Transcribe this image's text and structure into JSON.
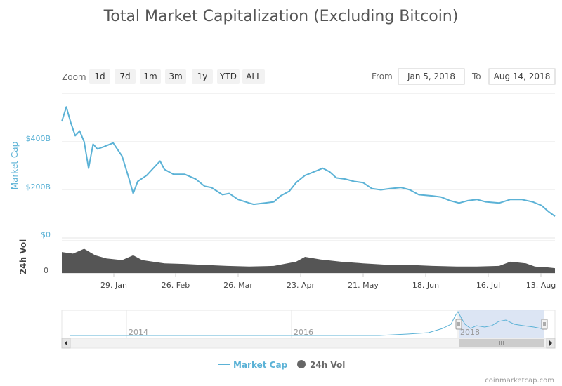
{
  "title": "Total Market Capitalization (Excluding Bitcoin)",
  "zoom": {
    "label": "Zoom",
    "buttons": [
      "1d",
      "7d",
      "1m",
      "3m",
      "1y",
      "YTD",
      "ALL"
    ]
  },
  "range": {
    "from_label": "From",
    "from_value": "Jan 5, 2018",
    "to_label": "To",
    "to_value": "Aug 14, 2018"
  },
  "legend": {
    "market_cap": "Market Cap",
    "volume": "24h Vol"
  },
  "credit": "coinmarketcap.com",
  "colors": {
    "market_cap": "#5bb2d6",
    "volume": "#555555",
    "navigator_selection": "#d8e2f3"
  },
  "chart_data": {
    "type": "line",
    "title": "Total Market Capitalization (Excluding Bitcoin)",
    "x_ticks": [
      "29. Jan",
      "26. Feb",
      "26. Mar",
      "23. Apr",
      "21. May",
      "18. Jun",
      "16. Jul",
      "13. Aug"
    ],
    "navigator_ticks": [
      "2014",
      "2016",
      "2018"
    ],
    "series": [
      {
        "name": "Market Cap",
        "ylabel": "Market Cap",
        "y_ticks": [
          "$0",
          "$200B",
          "$400B"
        ],
        "ylim": [
          0,
          560
        ],
        "unit": "billion USD",
        "x": [
          "2018-01-05",
          "2018-01-07",
          "2018-01-09",
          "2018-01-11",
          "2018-01-13",
          "2018-01-15",
          "2018-01-17",
          "2018-01-19",
          "2018-01-21",
          "2018-01-24",
          "2018-01-28",
          "2018-02-01",
          "2018-02-04",
          "2018-02-06",
          "2018-02-08",
          "2018-02-12",
          "2018-02-18",
          "2018-02-20",
          "2018-02-24",
          "2018-03-01",
          "2018-03-06",
          "2018-03-10",
          "2018-03-13",
          "2018-03-18",
          "2018-03-21",
          "2018-03-25",
          "2018-03-30",
          "2018-04-01",
          "2018-04-06",
          "2018-04-10",
          "2018-04-13",
          "2018-04-17",
          "2018-04-20",
          "2018-04-24",
          "2018-04-28",
          "2018-05-02",
          "2018-05-05",
          "2018-05-08",
          "2018-05-12",
          "2018-05-16",
          "2018-05-20",
          "2018-05-24",
          "2018-05-28",
          "2018-06-01",
          "2018-06-06",
          "2018-06-10",
          "2018-06-14",
          "2018-06-20",
          "2018-06-24",
          "2018-06-28",
          "2018-07-02",
          "2018-07-06",
          "2018-07-10",
          "2018-07-14",
          "2018-07-20",
          "2018-07-25",
          "2018-07-30",
          "2018-08-04",
          "2018-08-08",
          "2018-08-11",
          "2018-08-14"
        ],
        "values": [
          485,
          545,
          480,
          425,
          445,
          400,
          290,
          390,
          370,
          380,
          395,
          340,
          250,
          185,
          235,
          260,
          320,
          285,
          265,
          265,
          245,
          215,
          210,
          180,
          185,
          160,
          145,
          140,
          145,
          150,
          175,
          195,
          230,
          260,
          275,
          290,
          275,
          250,
          245,
          235,
          230,
          205,
          200,
          205,
          210,
          200,
          180,
          175,
          170,
          155,
          145,
          155,
          160,
          150,
          145,
          160,
          160,
          150,
          135,
          110,
          90
        ]
      },
      {
        "name": "24h Vol",
        "ylabel": "24h Vol",
        "y_ticks": [
          "0"
        ],
        "unit": "relative volume (share of panel height)",
        "x": [
          "2018-01-05",
          "2018-01-10",
          "2018-01-15",
          "2018-01-20",
          "2018-01-25",
          "2018-02-01",
          "2018-02-06",
          "2018-02-10",
          "2018-02-20",
          "2018-03-01",
          "2018-03-10",
          "2018-03-20",
          "2018-03-30",
          "2018-04-10",
          "2018-04-20",
          "2018-04-24",
          "2018-05-01",
          "2018-05-10",
          "2018-05-20",
          "2018-06-01",
          "2018-06-10",
          "2018-06-20",
          "2018-07-01",
          "2018-07-10",
          "2018-07-20",
          "2018-07-25",
          "2018-08-01",
          "2018-08-05",
          "2018-08-10",
          "2018-08-14"
        ],
        "values": [
          0.65,
          0.6,
          0.75,
          0.55,
          0.45,
          0.4,
          0.55,
          0.4,
          0.3,
          0.28,
          0.25,
          0.22,
          0.2,
          0.22,
          0.35,
          0.5,
          0.42,
          0.35,
          0.3,
          0.25,
          0.25,
          0.22,
          0.2,
          0.2,
          0.22,
          0.35,
          0.3,
          0.2,
          0.18,
          0.15
        ]
      }
    ],
    "legend_position": "bottom",
    "grid": true
  }
}
